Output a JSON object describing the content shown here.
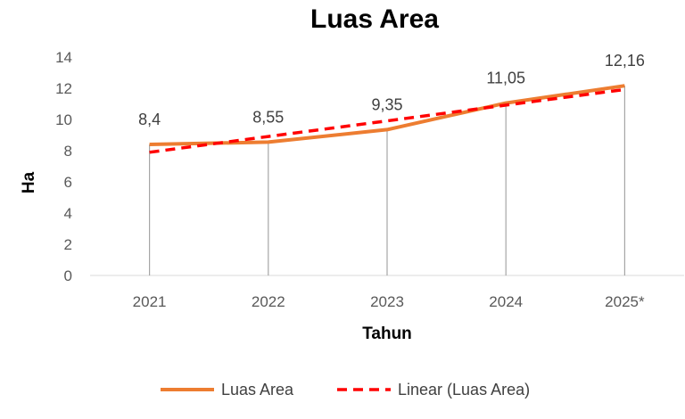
{
  "chart_data": {
    "type": "line",
    "title": "Luas Area",
    "xlabel": "Tahun",
    "ylabel": "Ha",
    "categories": [
      "2021",
      "2022",
      "2023",
      "2024",
      "2025*"
    ],
    "ylim": [
      0,
      14
    ],
    "yticks": [
      0,
      2,
      4,
      6,
      8,
      10,
      12,
      14
    ],
    "ytick_labels": [
      "0",
      "2",
      "4",
      "6",
      "8",
      "10",
      "12",
      "14"
    ],
    "series": [
      {
        "name": "Luas Area",
        "values": [
          8.4,
          8.55,
          9.35,
          11.05,
          12.16
        ],
        "data_labels": [
          "8,4",
          "8,55",
          "9,35",
          "11,05",
          "12,16"
        ],
        "color": "#ED7D31",
        "line_style": "solid"
      },
      {
        "name": "Linear (Luas Area)",
        "values": [
          7.9,
          8.91,
          9.91,
          10.92,
          11.92
        ],
        "color": "#FF0000",
        "line_style": "dashed",
        "trendline": true
      }
    ],
    "drop_lines": true,
    "drop_line_color": "#A6A6A6",
    "grid": false,
    "legend_position": "bottom"
  }
}
